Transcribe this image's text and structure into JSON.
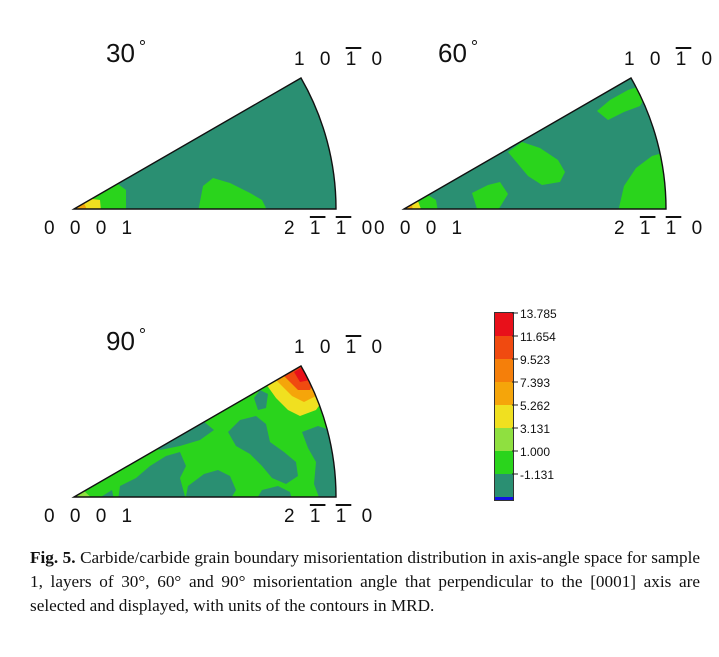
{
  "panels": [
    {
      "title": "30",
      "degree_sign": "°",
      "top_label": "1 0 1 0",
      "left_label": "0 0 0 1",
      "right_label": "2 1 1 0"
    },
    {
      "title": "60",
      "degree_sign": "°",
      "top_label": "1 0 1 0",
      "left_label": "0 0 0 1",
      "right_label": "2 1 1 0"
    },
    {
      "title": "90",
      "degree_sign": "°",
      "top_label": "1 0 1 0",
      "left_label": "0 0 0 1",
      "right_label": "2 1 1 0"
    }
  ],
  "legend": {
    "levels": [
      "13.785",
      "11.654",
      "9.523",
      "7.393",
      "5.262",
      "3.131",
      "1.000",
      "-1.131"
    ],
    "colors": [
      "#e8101a",
      "#f04a10",
      "#f57f0a",
      "#f5a50a",
      "#f0e020",
      "#8fe040",
      "#2ad41c",
      "#2a8f72",
      "#1010e6"
    ]
  },
  "caption": {
    "label": "Fig. 5.",
    "text": "Carbide/carbide grain boundary misorientation distribution in axis-angle space for sample 1, layers of 30°, 60° and 90° misorientation angle that perpendicular to the [0001] axis are selected and displayed, with units of the contours in MRD."
  }
}
